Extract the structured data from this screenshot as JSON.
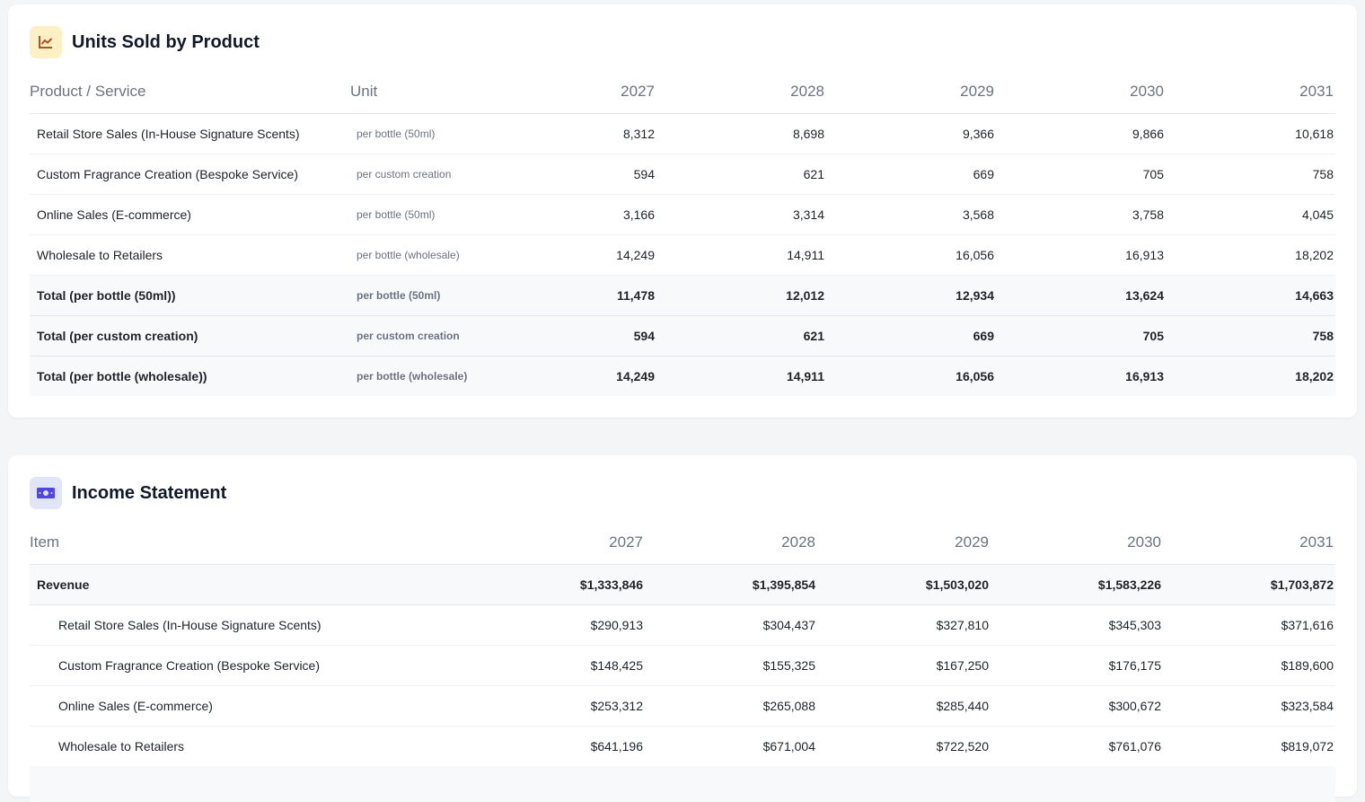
{
  "units": {
    "title": "Units Sold by Product",
    "columns": [
      "Product / Service",
      "Unit",
      "2027",
      "2028",
      "2029",
      "2030",
      "2031"
    ],
    "rows": [
      [
        "Retail Store Sales (In-House Signature Scents)",
        "per bottle (50ml)",
        "8,312",
        "8,698",
        "9,366",
        "9,866",
        "10,618"
      ],
      [
        "Custom Fragrance Creation (Bespoke Service)",
        "per custom creation",
        "594",
        "621",
        "669",
        "705",
        "758"
      ],
      [
        "Online Sales (E-commerce)",
        "per bottle (50ml)",
        "3,166",
        "3,314",
        "3,568",
        "3,758",
        "4,045"
      ],
      [
        "Wholesale to Retailers",
        "per bottle (wholesale)",
        "14,249",
        "14,911",
        "16,056",
        "16,913",
        "18,202"
      ]
    ],
    "totals": [
      [
        "Total (per bottle (50ml))",
        "per bottle (50ml)",
        "11,478",
        "12,012",
        "12,934",
        "13,624",
        "14,663"
      ],
      [
        "Total (per custom creation)",
        "per custom creation",
        "594",
        "621",
        "669",
        "705",
        "758"
      ],
      [
        "Total (per bottle (wholesale))",
        "per bottle (wholesale)",
        "14,249",
        "14,911",
        "16,056",
        "16,913",
        "18,202"
      ]
    ]
  },
  "income": {
    "title": "Income Statement",
    "columns": [
      "Item",
      "2027",
      "2028",
      "2029",
      "2030",
      "2031"
    ],
    "total_row": [
      "Revenue",
      "$1,333,846",
      "$1,395,854",
      "$1,503,020",
      "$1,583,226",
      "$1,703,872"
    ],
    "rows": [
      [
        "Retail Store Sales (In-House Signature Scents)",
        "$290,913",
        "$304,437",
        "$327,810",
        "$345,303",
        "$371,616"
      ],
      [
        "Custom Fragrance Creation (Bespoke Service)",
        "$148,425",
        "$155,325",
        "$167,250",
        "$176,175",
        "$189,600"
      ],
      [
        "Online Sales (E-commerce)",
        "$253,312",
        "$265,088",
        "$285,440",
        "$300,672",
        "$323,584"
      ],
      [
        "Wholesale to Retailers",
        "$641,196",
        "$671,004",
        "$722,520",
        "$761,076",
        "$819,072"
      ]
    ]
  }
}
